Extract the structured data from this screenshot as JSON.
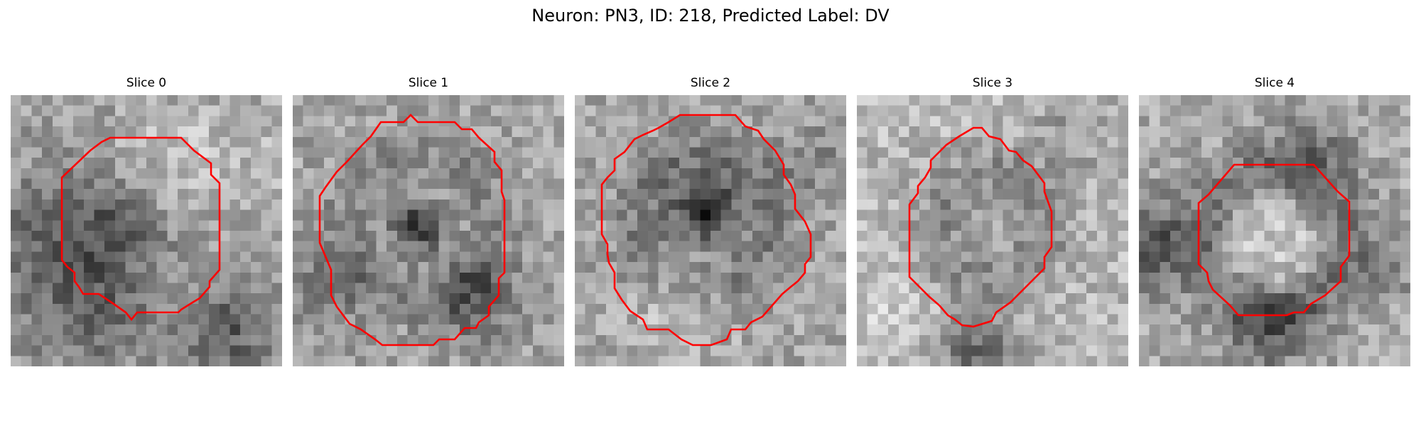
{
  "figure": {
    "title": "Neuron: PN3, ID: 218, Predicted Label: DV"
  },
  "colors": {
    "contour": "#ff0000",
    "colormap": "grayscale"
  },
  "slices": [
    {
      "title": "Slice 0"
    },
    {
      "title": "Slice 1"
    },
    {
      "title": "Slice 2"
    },
    {
      "title": "Slice 3"
    },
    {
      "title": "Slice 4"
    }
  ]
}
